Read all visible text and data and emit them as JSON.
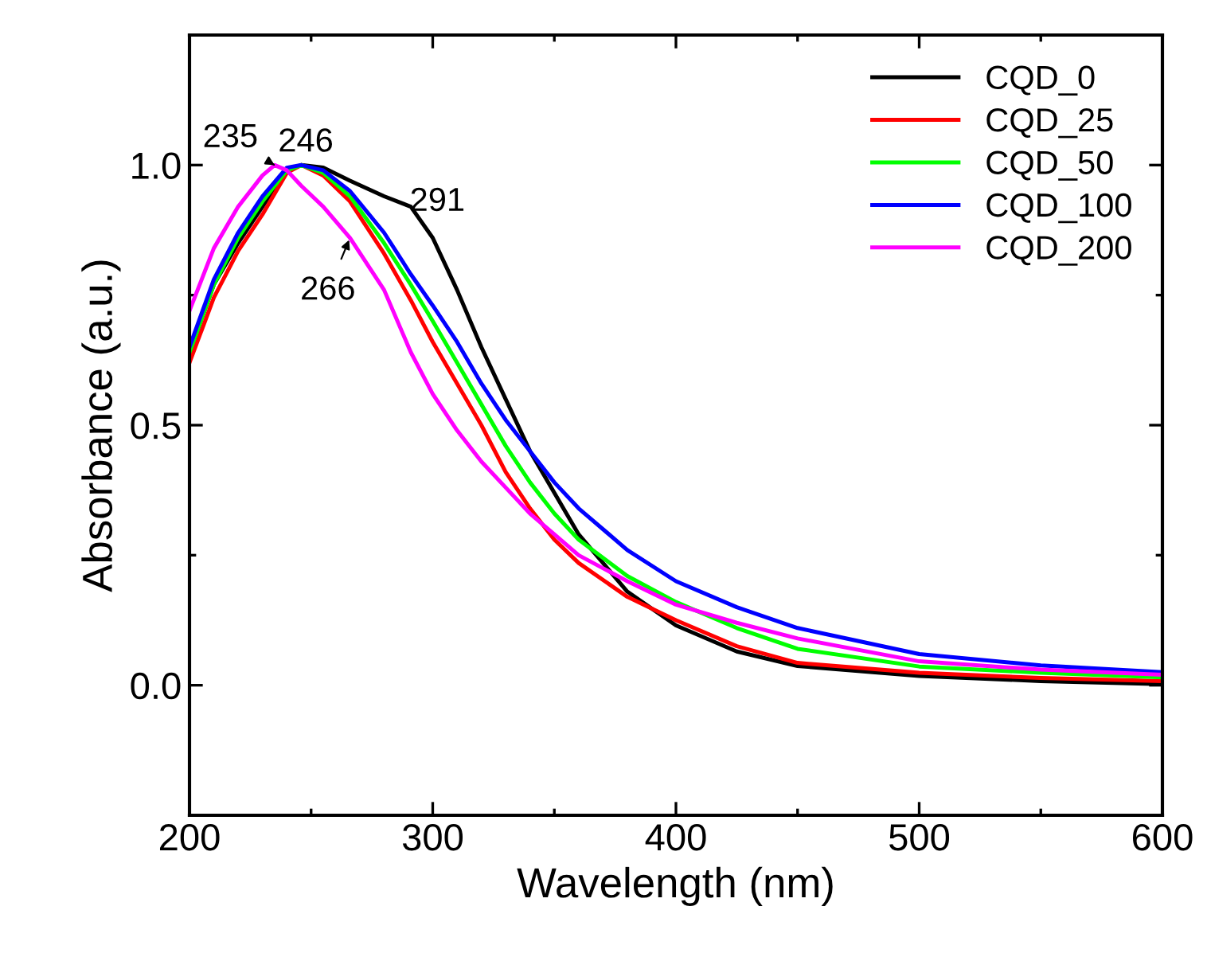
{
  "chart_data": {
    "type": "line",
    "xlabel": "Wavelength (nm)",
    "ylabel": "Absorbance (a.u.)",
    "xlim": [
      200,
      600
    ],
    "ylim": [
      -0.25,
      1.25
    ],
    "xticks": [
      200,
      300,
      400,
      500,
      600
    ],
    "yticks": [
      {
        "value": 0,
        "label": "0.0"
      },
      0.5,
      {
        "value": 1,
        "label": "1.0"
      }
    ],
    "grid": false,
    "legend": "top right",
    "marker": "none",
    "line_style": "solid",
    "x": [
      200,
      210,
      220,
      230,
      240,
      246,
      255,
      266,
      280,
      291,
      300,
      310,
      320,
      330,
      340,
      350,
      360,
      380,
      400,
      425,
      450,
      500,
      550,
      600
    ],
    "series": [
      {
        "name": "CQD_0",
        "color": "#000000",
        "values": [
          0.64,
          0.77,
          0.85,
          0.92,
          0.99,
          1.0,
          0.995,
          0.97,
          0.94,
          0.92,
          0.86,
          0.76,
          0.65,
          0.55,
          0.45,
          0.37,
          0.29,
          0.18,
          0.115,
          0.065,
          0.037,
          0.018,
          0.008,
          0.002
        ]
      },
      {
        "name": "CQD_25",
        "color": "#ff0000",
        "values": [
          0.62,
          0.745,
          0.835,
          0.905,
          0.985,
          1.0,
          0.98,
          0.93,
          0.83,
          0.74,
          0.66,
          0.58,
          0.5,
          0.41,
          0.34,
          0.28,
          0.235,
          0.17,
          0.125,
          0.075,
          0.043,
          0.024,
          0.014,
          0.008
        ]
      },
      {
        "name": "CQD_50",
        "color": "#00ff00",
        "values": [
          0.64,
          0.77,
          0.86,
          0.93,
          0.99,
          1.0,
          0.985,
          0.94,
          0.85,
          0.77,
          0.7,
          0.62,
          0.54,
          0.46,
          0.39,
          0.33,
          0.28,
          0.21,
          0.16,
          0.11,
          0.07,
          0.036,
          0.024,
          0.015
        ]
      },
      {
        "name": "CQD_100",
        "color": "#0000ff",
        "values": [
          0.65,
          0.78,
          0.87,
          0.94,
          0.995,
          1.0,
          0.99,
          0.95,
          0.87,
          0.79,
          0.73,
          0.66,
          0.58,
          0.51,
          0.45,
          0.39,
          0.34,
          0.26,
          0.2,
          0.15,
          0.11,
          0.06,
          0.038,
          0.025
        ]
      },
      {
        "name": "CQD_200",
        "color": "#ff00ff",
        "x": [
          200,
          205,
          210,
          220,
          230,
          235,
          240,
          246,
          255,
          266,
          280,
          291,
          300,
          310,
          320,
          330,
          340,
          350,
          360,
          380,
          400,
          425,
          450,
          500,
          550,
          600
        ],
        "values": [
          0.72,
          0.78,
          0.84,
          0.92,
          0.98,
          1.0,
          0.99,
          0.96,
          0.92,
          0.86,
          0.76,
          0.64,
          0.56,
          0.49,
          0.43,
          0.38,
          0.33,
          0.29,
          0.25,
          0.2,
          0.155,
          0.12,
          0.09,
          0.046,
          0.03,
          0.02
        ]
      }
    ],
    "annotations": [
      {
        "text": "235",
        "x": 235,
        "y": 1.0
      },
      {
        "text": "246",
        "x": 246,
        "y": 1.0
      },
      {
        "text": "291",
        "x": 291,
        "y": 0.92
      },
      {
        "text": "266",
        "x": 266,
        "y": 0.86
      }
    ]
  }
}
